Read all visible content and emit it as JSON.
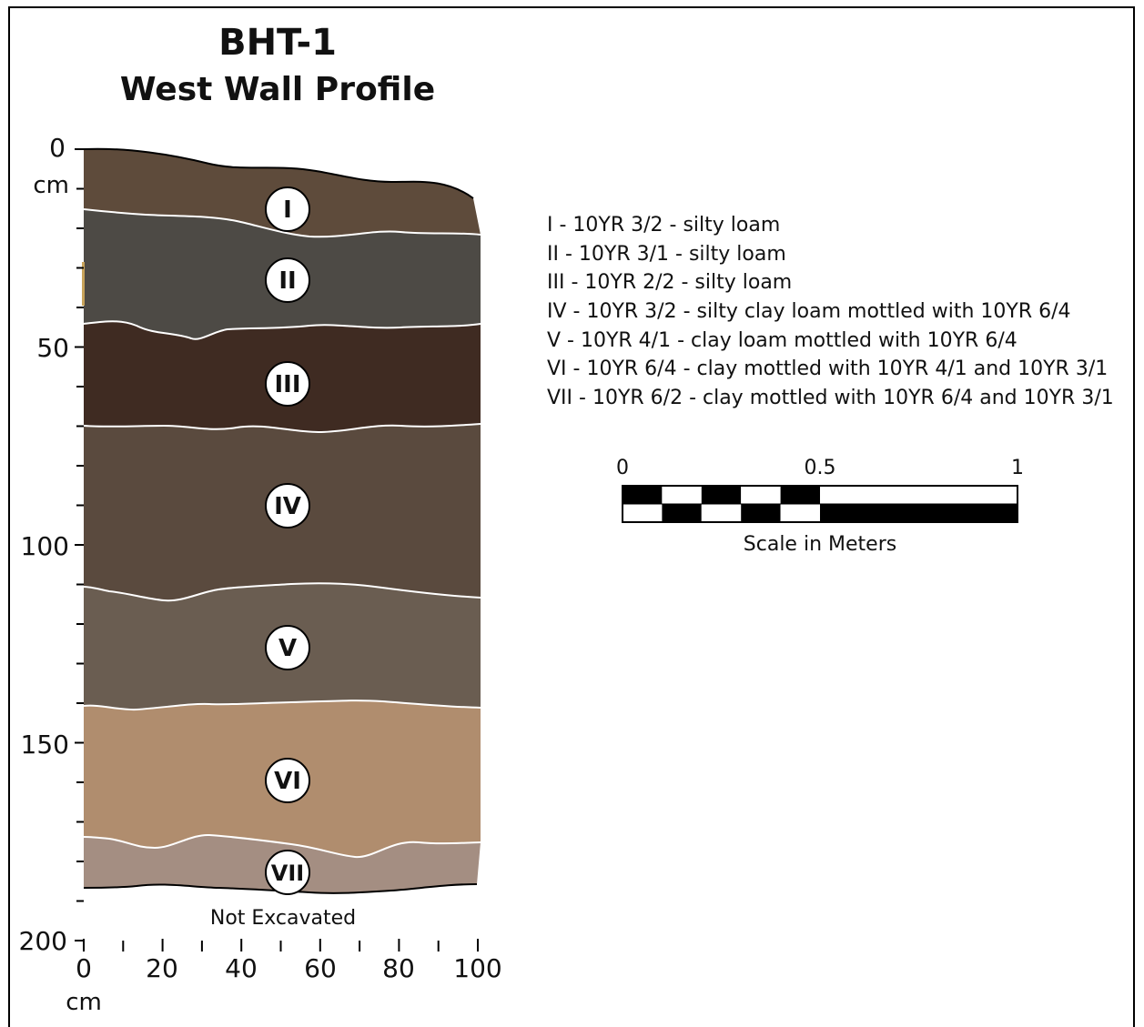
{
  "title": "BHT-1",
  "subtitle": "West Wall Profile",
  "y_axis": {
    "ticks": [
      "0",
      "50",
      "100",
      "150",
      "200"
    ],
    "unit": "cm",
    "range_cm": [
      0,
      200
    ],
    "minor_step_cm": 10
  },
  "x_axis": {
    "ticks": [
      "0",
      "20",
      "40",
      "60",
      "80",
      "100"
    ],
    "unit": "cm",
    "range_cm": [
      0,
      100
    ],
    "minor_step_cm": 10
  },
  "layers": [
    {
      "id": "I",
      "color": "#5e4b3b"
    },
    {
      "id": "II",
      "color": "#4d4a45"
    },
    {
      "id": "III",
      "color": "#3f2b22"
    },
    {
      "id": "IV",
      "color": "#5a4a3e"
    },
    {
      "id": "V",
      "color": "#6a5d51"
    },
    {
      "id": "VI",
      "color": "#b08d6e"
    },
    {
      "id": "VII",
      "color": "#a48e82"
    }
  ],
  "below_profile_label": "Not Excavated",
  "legend": [
    "I - 10YR 3/2 - silty loam",
    "II - 10YR 3/1 - silty loam",
    "III - 10YR 2/2 - silty loam",
    "IV - 10YR 3/2 - silty clay loam mottled with 10YR 6/4",
    "V - 10YR 4/1 - clay loam mottled with 10YR 6/4",
    "VI - 10YR 6/4 - clay mottled with 10YR 4/1 and 10YR 3/1",
    "VII - 10YR 6/2 - clay mottled with 10YR 6/4 and 10YR 3/1"
  ],
  "scale_bar": {
    "labels": [
      "0",
      "0.5",
      "1"
    ],
    "caption": "Scale in Meters"
  }
}
